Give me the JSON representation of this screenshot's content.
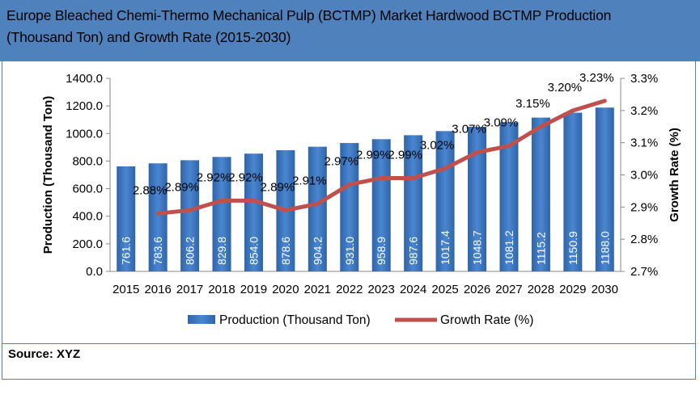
{
  "header": {
    "title_line1": "Europe Bleached Chemi-Thermo Mechanical Pulp (BCTMP) Market Hardwood BCTMP Production",
    "title_line2": "(Thousand Ton) and Growth Rate (2015-2030)"
  },
  "footer": {
    "source": "Source: XYZ"
  },
  "colors": {
    "header": "#4f81bd",
    "bar": "#3a73c0",
    "line": "#c0504d"
  },
  "chart_data": {
    "type": "bar+line",
    "title": "Europe Bleached Chemi-Thermo Mechanical Pulp (BCTMP) Market Hardwood BCTMP Production (Thousand Ton) and Growth Rate (2015-2030)",
    "categories": [
      "2015",
      "2016",
      "2017",
      "2018",
      "2019",
      "2020",
      "2021",
      "2022",
      "2023",
      "2024",
      "2025",
      "2026",
      "2027",
      "2028",
      "2029",
      "2030"
    ],
    "series": [
      {
        "name": "Production (Thousand Ton)",
        "type": "bar",
        "axis": "left",
        "values": [
          761.6,
          783.6,
          806.2,
          829.8,
          854.0,
          878.6,
          904.2,
          931.0,
          958.9,
          987.6,
          1017.4,
          1048.7,
          1081.2,
          1115.2,
          1150.9,
          1188.0
        ],
        "labels": [
          "761.6",
          "783.6",
          "806.2",
          "829.8",
          "854.0",
          "878.6",
          "904.2",
          "931.0",
          "958.9",
          "987.6",
          "1017.4",
          "1048.7",
          "1081.2",
          "1115.2",
          "1150.9",
          "1188.0"
        ]
      },
      {
        "name": "Growth Rate (%)",
        "type": "line",
        "axis": "right",
        "values": [
          null,
          2.88,
          2.89,
          2.92,
          2.92,
          2.89,
          2.91,
          2.97,
          2.99,
          2.99,
          3.02,
          3.07,
          3.09,
          3.15,
          3.2,
          3.23
        ],
        "labels": [
          "",
          "2.88%",
          "2.89%",
          "2.92%",
          "2.92%",
          "2.89%",
          "2.91%",
          "2.97%",
          "2.99%",
          "2.99%",
          "3.02%",
          "3.07%",
          "3.09%",
          "3.15%",
          "3.20%",
          "3.23%"
        ]
      }
    ],
    "ylabel": "Production (Thousand Ton)",
    "y2label": "Growth Rate (%)",
    "ylim": [
      0,
      1400
    ],
    "y2lim": [
      2.7,
      3.3
    ],
    "yticks": [
      "0.0",
      "200.0",
      "400.0",
      "600.0",
      "800.0",
      "1000.0",
      "1200.0",
      "1400.0"
    ],
    "y2ticks": [
      "2.7%",
      "2.8%",
      "2.9%",
      "3.0%",
      "3.1%",
      "3.2%",
      "3.3%"
    ],
    "legend": "bottom"
  }
}
